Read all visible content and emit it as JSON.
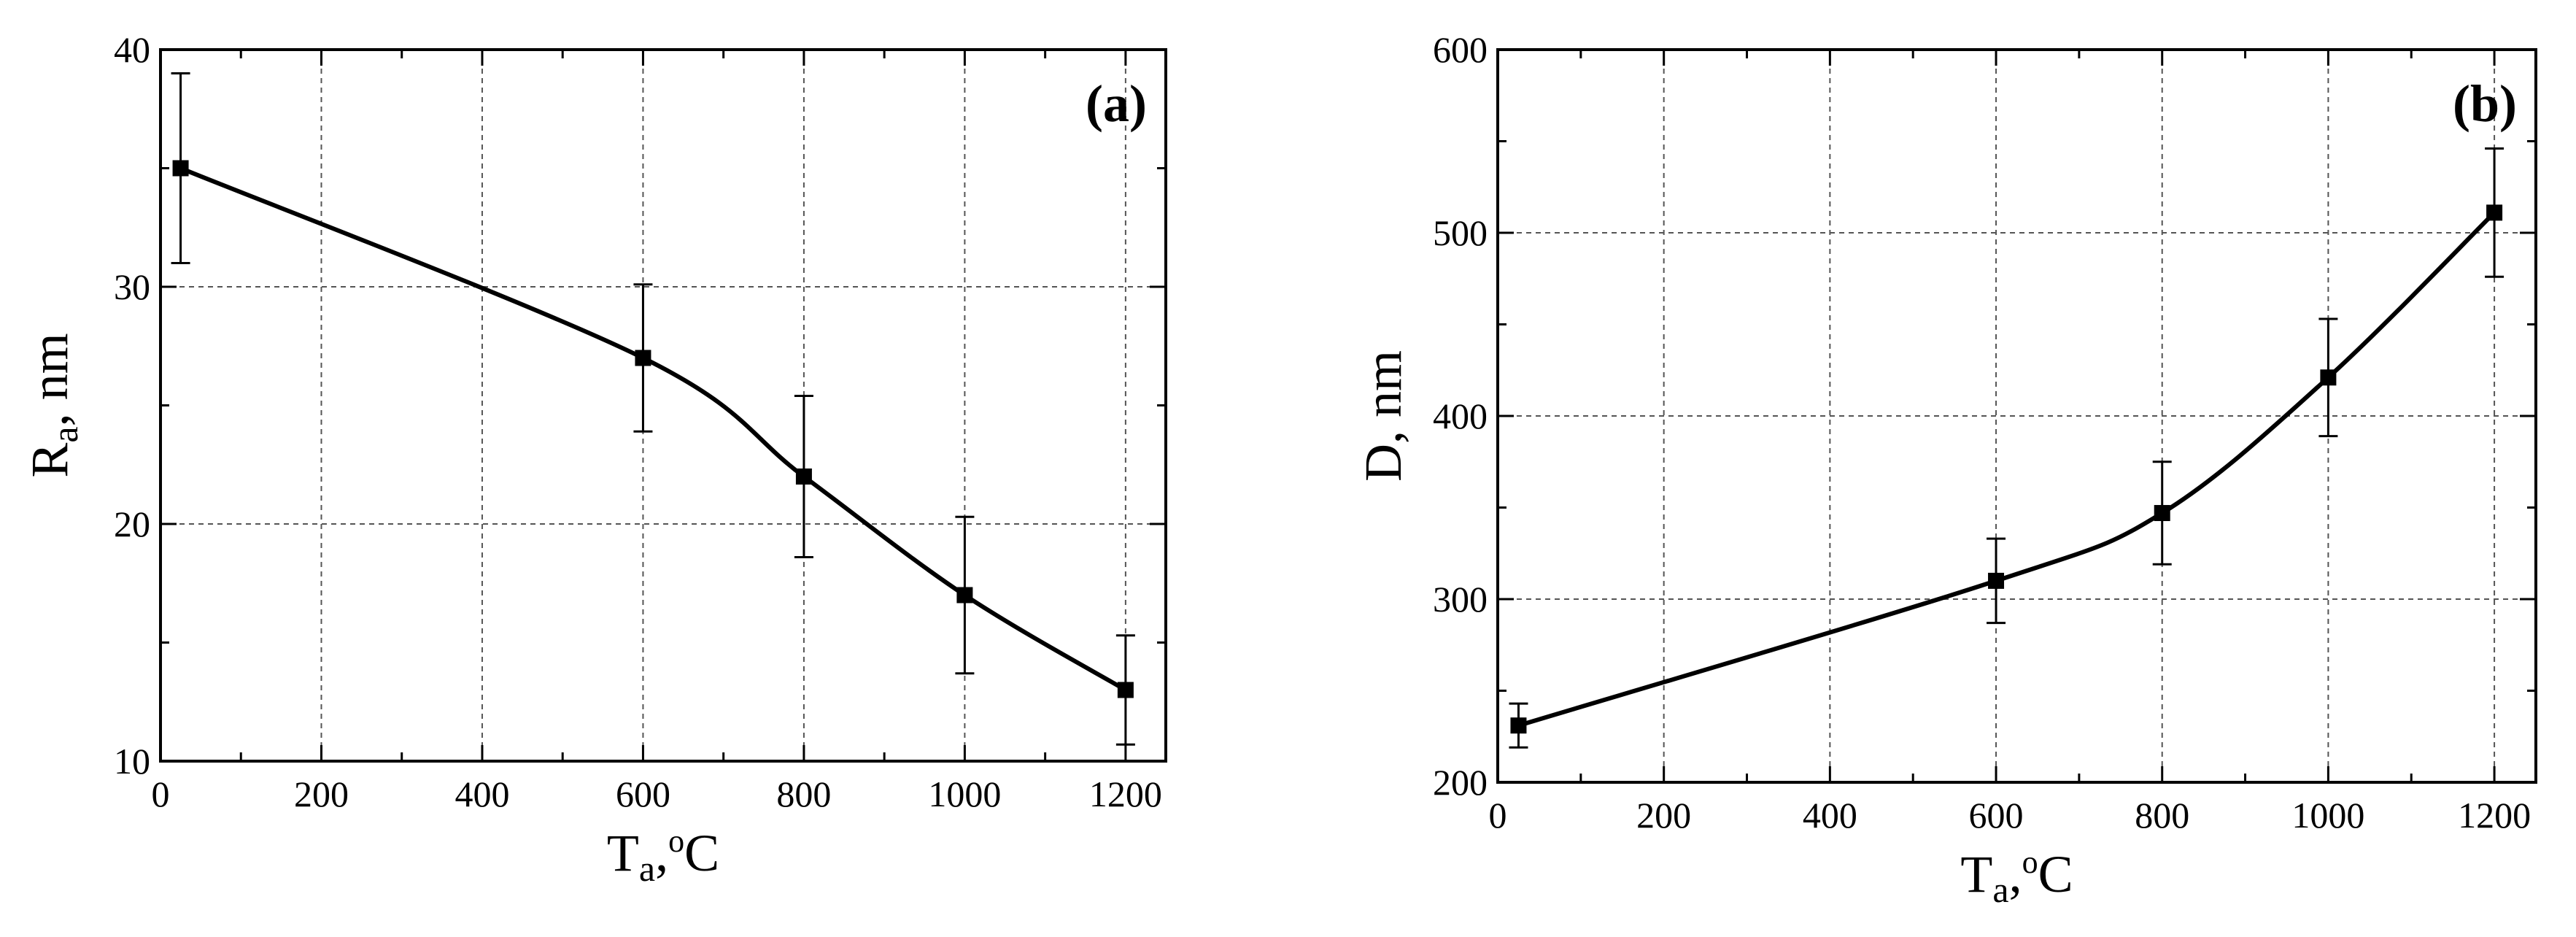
{
  "chart_data": [
    {
      "panel": "(a)",
      "type": "line",
      "title": "",
      "xlabel": "Ta,oC",
      "ylabel": "Ra, nm",
      "xlabel_main": "T",
      "xlabel_sub": "a",
      "xlabel_rest": ",",
      "xlabel_sup": "o",
      "xlabel_unit": "C",
      "ylabel_main": "R",
      "ylabel_sub": "a",
      "ylabel_rest": ", nm",
      "xlim": [
        0,
        1250
      ],
      "ylim": [
        10,
        40
      ],
      "xticks": [
        0,
        200,
        400,
        600,
        800,
        1000,
        1200
      ],
      "yticks": [
        10,
        20,
        30,
        40
      ],
      "grid": true,
      "series": [
        {
          "name": "Ra",
          "x": [
            25,
            600,
            800,
            1000,
            1200
          ],
          "y": [
            35,
            27,
            22,
            17,
            13
          ],
          "err": [
            4,
            3.1,
            3.4,
            3.3,
            2.3
          ]
        }
      ]
    },
    {
      "panel": "(b)",
      "type": "line",
      "title": "",
      "xlabel": "Ta,oC",
      "ylabel": "D, nm",
      "xlabel_main": "T",
      "xlabel_sub": "a",
      "xlabel_rest": ",",
      "xlabel_sup": "o",
      "xlabel_unit": "C",
      "ylabel_main": "D, nm",
      "ylabel_sub": "",
      "ylabel_rest": "",
      "xlim": [
        0,
        1250
      ],
      "ylim": [
        200,
        600
      ],
      "xticks": [
        0,
        200,
        400,
        600,
        800,
        1000,
        1200
      ],
      "yticks": [
        200,
        300,
        400,
        500,
        600
      ],
      "grid": true,
      "series": [
        {
          "name": "D",
          "x": [
            25,
            600,
            800,
            1000,
            1200
          ],
          "y": [
            231,
            310,
            347,
            421,
            511
          ],
          "err": [
            12,
            23,
            28,
            32,
            35
          ]
        }
      ]
    }
  ]
}
